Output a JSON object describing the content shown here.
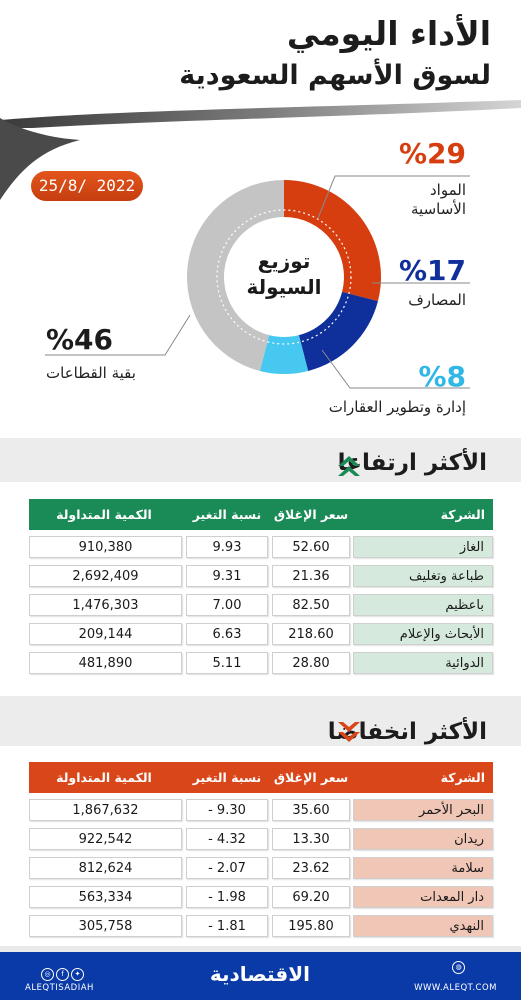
{
  "header": {
    "title_line1": "الأداء اليومي",
    "title_line2": "لسوق الأسهم السعودية",
    "date": "25/8/ 2022"
  },
  "donut": {
    "center_label_1": "توزيع",
    "center_label_2": "السيولة"
  },
  "chart_data": [
    {
      "type": "pie",
      "title": "توزيع السيولة",
      "categories": [
        "المواد الأساسية",
        "المصارف",
        "إدارة وتطوير العقارات",
        "بقية القطاعات"
      ],
      "values": [
        29,
        17,
        8,
        46
      ],
      "labels": [
        "%29",
        "%17",
        "%8",
        "%46"
      ],
      "colors": [
        "#d63e10",
        "#0f2f9a",
        "#46c8f0",
        "#c4c4c4"
      ]
    }
  ],
  "segments": {
    "materials": {
      "pct": "%29",
      "label_1": "المواد",
      "label_2": "الأساسية"
    },
    "banks": {
      "pct": "%17",
      "label": "المصارف"
    },
    "realestate": {
      "pct": "%8",
      "label": "إدارة وتطوير العقارات"
    },
    "others": {
      "pct": "%46",
      "label": "بقية القطاعات"
    }
  },
  "gainers": {
    "title": "الأكثر ارتفاعا",
    "header_color": "#1a8a57",
    "name_cell_color": "#d6e9dd",
    "columns": [
      "الشركة",
      "سعر الإغلاق",
      "نسبة التغير %",
      "الكمية المتداولة"
    ],
    "rows": [
      {
        "company": "الغاز",
        "close": "52.60",
        "change": "9.93",
        "volume": "910,380"
      },
      {
        "company": "طباعة وتغليف",
        "close": "21.36",
        "change": "9.31",
        "volume": "2,692,409"
      },
      {
        "company": "باعظيم",
        "close": "82.50",
        "change": "7.00",
        "volume": "1,476,303"
      },
      {
        "company": "الأبحاث والإعلام",
        "close": "218.60",
        "change": "6.63",
        "volume": "209,144"
      },
      {
        "company": "الدوائية",
        "close": "28.80",
        "change": "5.11",
        "volume": "481,890"
      }
    ]
  },
  "losers": {
    "title": "الأكثر انخفاضا",
    "header_color": "#d9461a",
    "name_cell_color": "#f0c6b6",
    "columns": [
      "الشركة",
      "سعر الإغلاق",
      "نسبة التغير %",
      "الكمية المتداولة"
    ],
    "rows": [
      {
        "company": "البحر الأحمر",
        "close": "35.60",
        "change": "- 9.30",
        "volume": "1,867,632"
      },
      {
        "company": "ريدان",
        "close": "13.30",
        "change": "- 4.32",
        "volume": "922,542"
      },
      {
        "company": "سلامة",
        "close": "23.62",
        "change": "- 2.07",
        "volume": "812,624"
      },
      {
        "company": "دار المعدات",
        "close": "69.20",
        "change": "- 1.98",
        "volume": "563,334"
      },
      {
        "company": "النهدي",
        "close": "195.80",
        "change": "- 1.81",
        "volume": "305,758"
      }
    ]
  },
  "footer": {
    "logo": "الاقتصادية",
    "website": "WWW.ALEQT.COM",
    "handle": "ALEQTISADIAH",
    "social_icons": [
      "instagram-icon",
      "facebook-icon",
      "twitter-icon"
    ],
    "site_icon": "globe-icon"
  }
}
